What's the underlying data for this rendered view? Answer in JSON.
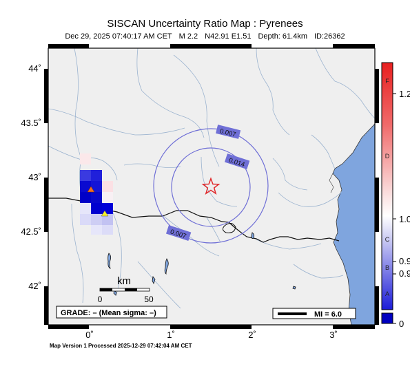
{
  "map": {
    "title": "SISCAN Uncertainty Ratio Map : Pyrenees",
    "subtitle": {
      "datetime": "Dec 29, 2025 07:40:17 AM CET",
      "magnitude": "M 2.2",
      "location": "N42.91 E1.51",
      "depth": "Depth: 61.4km",
      "event_id": "ID:26362"
    },
    "footer": "Map Version 1 Processed 2025-12-29 07:42:04 AM CET",
    "lat_labels": [
      "44˚",
      "43.5˚",
      "43˚",
      "42.5˚",
      "42˚"
    ],
    "lon_labels": [
      "0˚",
      "1˚",
      "2˚",
      "3˚"
    ],
    "scale_bar": {
      "unit": "km",
      "ticks": [
        "0",
        "50"
      ]
    },
    "grade_text": "GRADE: – (Mean sigma: –)",
    "mi_legend": "MI = 6.0",
    "contour_labels": [
      "0.007",
      "0.014",
      "0.007"
    ],
    "colorbar": {
      "letters": [
        "F",
        "D",
        "C",
        "B",
        "A"
      ],
      "values": [
        "1.2",
        "1.0",
        "0.9",
        "0.9",
        "0"
      ]
    },
    "colors": {
      "land": "#efefef",
      "sea": "#7fa5de",
      "contour": "#6f6fd6",
      "epicenter": "#e0292b",
      "station_orange": "#f07020",
      "station_yellow": "#f4ee2a"
    },
    "icons": {
      "epicenter": "star-icon",
      "station": "triangle-icon"
    }
  }
}
